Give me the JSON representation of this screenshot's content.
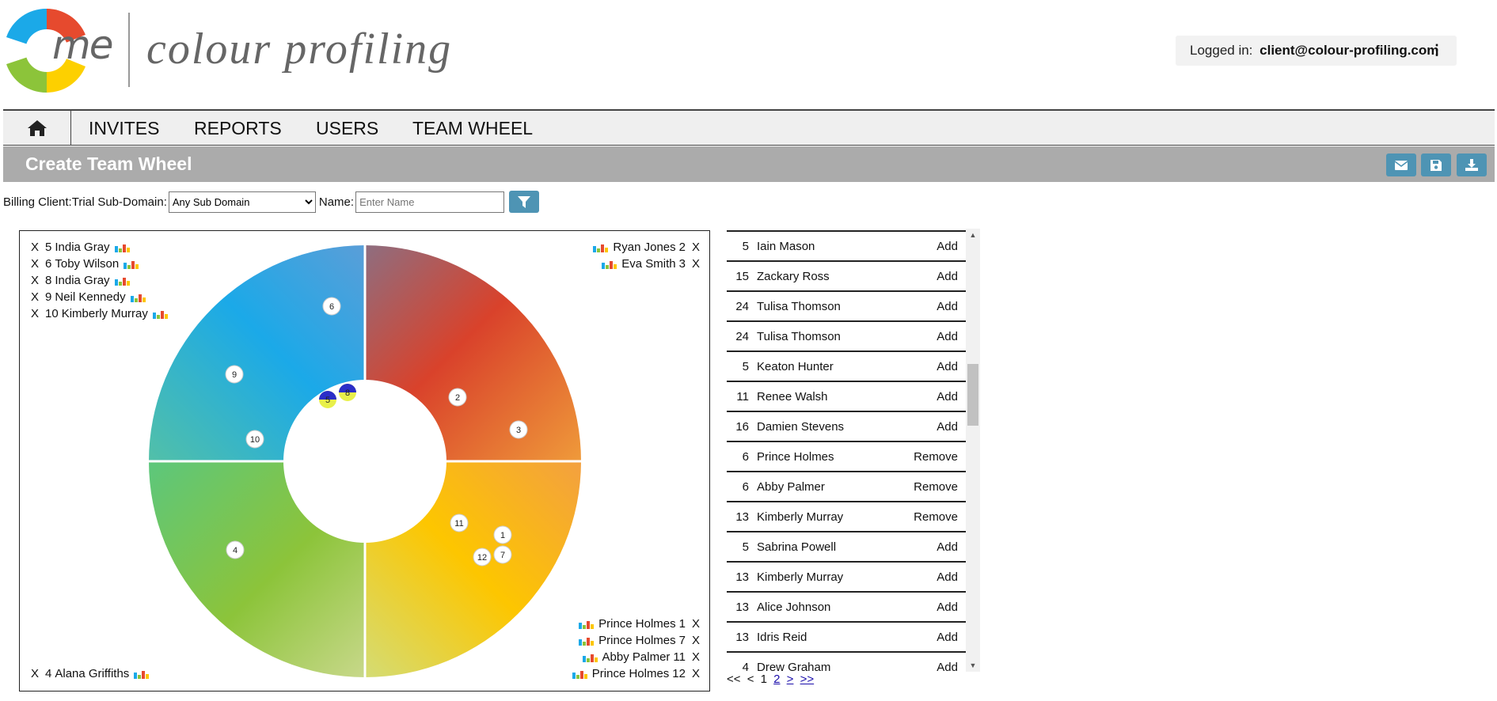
{
  "header": {
    "logo_me": "me",
    "logo_text": "colour profiling",
    "logged_in_label": "Logged in:",
    "user_email": "client@colour-profiling.com",
    "menu_glyph": "⋮"
  },
  "nav": {
    "home_icon": "home-icon",
    "items": [
      "INVITES",
      "REPORTS",
      "USERS",
      "TEAM WHEEL"
    ]
  },
  "page": {
    "title": "Create Team Wheel",
    "actions": [
      "email-icon",
      "save-icon",
      "download-icon"
    ]
  },
  "filters": {
    "billing_client_label": "Billing Client:",
    "billing_client_value": "Trial",
    "subdomain_label": "Sub-Domain:",
    "subdomain_selected": "Any Sub Domain",
    "name_label": "Name:",
    "name_placeholder": "Enter Name",
    "filter_icon": "filter-icon"
  },
  "wheel": {
    "quadrant_colors": {
      "red": "#d9422b",
      "blue": "#1ba9e8",
      "green": "#8cc43a",
      "yellow": "#fdc600"
    },
    "legend_top_left": [
      {
        "x": "X",
        "num": "5",
        "name": "India Gray"
      },
      {
        "x": "X",
        "num": "6",
        "name": "Toby Wilson"
      },
      {
        "x": "X",
        "num": "8",
        "name": "India Gray"
      },
      {
        "x": "X",
        "num": "9",
        "name": "Neil Kennedy"
      },
      {
        "x": "X",
        "num": "10",
        "name": "Kimberly Murray"
      }
    ],
    "legend_top_right": [
      {
        "x": "X",
        "num": "2",
        "name": "Ryan Jones"
      },
      {
        "x": "X",
        "num": "3",
        "name": "Eva Smith"
      }
    ],
    "legend_bottom_left": [
      {
        "x": "X",
        "num": "4",
        "name": "Alana Griffiths"
      }
    ],
    "legend_bottom_right": [
      {
        "x": "X",
        "num": "1",
        "name": "Prince Holmes"
      },
      {
        "x": "X",
        "num": "7",
        "name": "Prince Holmes"
      },
      {
        "x": "X",
        "num": "11",
        "name": "Abby Palmer"
      },
      {
        "x": "X",
        "num": "12",
        "name": "Prince Holmes"
      }
    ],
    "markers": [
      {
        "label": "6"
      },
      {
        "label": "9"
      },
      {
        "label": "10"
      },
      {
        "label": "2"
      },
      {
        "label": "3"
      },
      {
        "label": "4"
      },
      {
        "label": "11"
      },
      {
        "label": "1"
      },
      {
        "label": "12"
      },
      {
        "label": "7"
      },
      {
        "label": "5"
      },
      {
        "label": "8"
      }
    ]
  },
  "people_list": [
    {
      "num": "5",
      "name": "Iain Mason",
      "action": "Add"
    },
    {
      "num": "15",
      "name": "Zackary Ross",
      "action": "Add"
    },
    {
      "num": "24",
      "name": "Tulisa Thomson",
      "action": "Add"
    },
    {
      "num": "24",
      "name": "Tulisa Thomson",
      "action": "Add"
    },
    {
      "num": "5",
      "name": "Keaton Hunter",
      "action": "Add"
    },
    {
      "num": "11",
      "name": "Renee Walsh",
      "action": "Add"
    },
    {
      "num": "16",
      "name": "Damien Stevens",
      "action": "Add"
    },
    {
      "num": "6",
      "name": "Prince Holmes",
      "action": "Remove"
    },
    {
      "num": "6",
      "name": "Abby Palmer",
      "action": "Remove"
    },
    {
      "num": "13",
      "name": "Kimberly Murray",
      "action": "Remove"
    },
    {
      "num": "5",
      "name": "Sabrina Powell",
      "action": "Add"
    },
    {
      "num": "13",
      "name": "Kimberly Murray",
      "action": "Add"
    },
    {
      "num": "13",
      "name": "Alice Johnson",
      "action": "Add"
    },
    {
      "num": "13",
      "name": "Idris Reid",
      "action": "Add"
    },
    {
      "num": "4",
      "name": "Drew Graham",
      "action": "Add"
    }
  ],
  "pager": {
    "first": "<<",
    "prev": "<",
    "current": "1",
    "page2": "2",
    "next": ">",
    "last": ">>"
  }
}
